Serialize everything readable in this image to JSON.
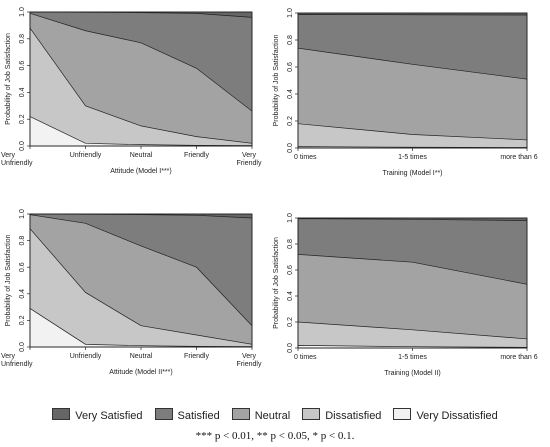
{
  "levels": [
    "Very Satisfied",
    "Satisfied",
    "Neutral",
    "Dissatisfied",
    "Very Dissatisfied"
  ],
  "colors": {
    "Very Satisfied": "#666666",
    "Satisfied": "#7d7d7d",
    "Neutral": "#a3a3a3",
    "Dissatisfied": "#c7c7c7",
    "Very Dissatisfied": "#f2f2f2"
  },
  "legend": [
    "Very Satisfied",
    "Satisfied",
    "Neutral",
    "Dissatisfied",
    "Very Dissatisfied"
  ],
  "footnote": "*** p < 0.01, ** p < 0.05, * p < 0.1.",
  "chart_data": [
    {
      "type": "area",
      "xlabel": "Attitude (Model I***)",
      "ylabel": "Probability of Job Satisfaction",
      "ylim": [
        0,
        1
      ],
      "yticks": [
        "0.0",
        "0.2",
        "0.4",
        "0.6",
        "0.8",
        "1.0"
      ],
      "categories": [
        "Very\nUnfriendly",
        "Unfriendly",
        "Neutral",
        "Friendly",
        "Very\nFriendly"
      ],
      "cumulative_boundaries": {
        "Very Dissatisfied": [
          0.22,
          0.02,
          0.01,
          0.005,
          0.003
        ],
        "Dissatisfied": [
          0.88,
          0.3,
          0.15,
          0.07,
          0.02
        ],
        "Neutral": [
          0.99,
          0.86,
          0.77,
          0.58,
          0.26
        ],
        "Satisfied": [
          1.0,
          0.998,
          0.995,
          0.99,
          0.96
        ],
        "Very Satisfied": [
          1,
          1,
          1,
          1,
          1
        ]
      }
    },
    {
      "type": "area",
      "xlabel": "Training (Model I**)",
      "ylabel": "Probability of Job Satisfaction",
      "ylim": [
        0,
        1
      ],
      "yticks": [
        "0.0",
        "0.2",
        "0.4",
        "0.6",
        "0.8",
        "1.0"
      ],
      "categories": [
        "0 times",
        "1-5 times",
        "more than 6"
      ],
      "cumulative_boundaries": {
        "Very Dissatisfied": [
          0.01,
          0.006,
          0.004
        ],
        "Dissatisfied": [
          0.18,
          0.1,
          0.06
        ],
        "Neutral": [
          0.74,
          0.62,
          0.51
        ],
        "Satisfied": [
          0.99,
          0.987,
          0.985
        ],
        "Very Satisfied": [
          1,
          1,
          1
        ]
      }
    },
    {
      "type": "area",
      "xlabel": "Attitude (Model II***)",
      "ylabel": "Probability of Job Satisfaction",
      "ylim": [
        0,
        1
      ],
      "yticks": [
        "0.0",
        "0.2",
        "0.4",
        "0.6",
        "0.8",
        "1.0"
      ],
      "categories": [
        "Very\nUnfriendly",
        "Unfriendly",
        "Neutral",
        "Friendly",
        "Very\nFriendly"
      ],
      "cumulative_boundaries": {
        "Very Dissatisfied": [
          0.29,
          0.02,
          0.01,
          0.005,
          0.003
        ],
        "Dissatisfied": [
          0.89,
          0.41,
          0.16,
          0.09,
          0.02
        ],
        "Neutral": [
          0.995,
          0.93,
          0.76,
          0.6,
          0.16
        ],
        "Satisfied": [
          1.0,
          0.998,
          0.995,
          0.99,
          0.97
        ],
        "Very Satisfied": [
          1,
          1,
          1,
          1,
          1
        ]
      }
    },
    {
      "type": "area",
      "xlabel": "Training (Model II)",
      "ylabel": "Probability of Job Satisfaction",
      "ylim": [
        0,
        1
      ],
      "yticks": [
        "0.0",
        "0.2",
        "0.4",
        "0.6",
        "0.8",
        "1.0"
      ],
      "categories": [
        "0 times",
        "1-5 times",
        "more than 6"
      ],
      "cumulative_boundaries": {
        "Very Dissatisfied": [
          0.02,
          0.01,
          0.005
        ],
        "Dissatisfied": [
          0.2,
          0.14,
          0.07
        ],
        "Neutral": [
          0.72,
          0.66,
          0.49
        ],
        "Satisfied": [
          0.995,
          0.99,
          0.98
        ],
        "Very Satisfied": [
          1,
          1,
          1
        ]
      }
    }
  ]
}
